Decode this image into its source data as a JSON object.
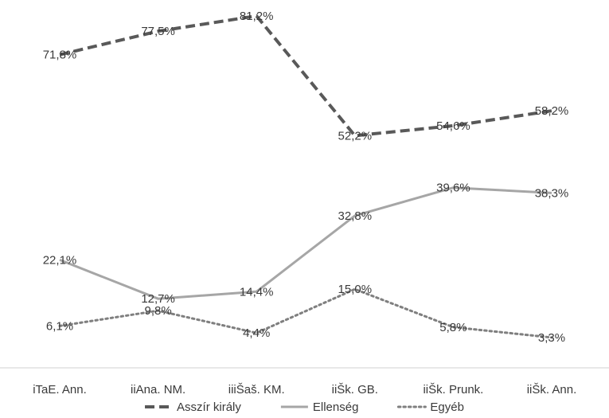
{
  "chart_data": {
    "type": "line",
    "categories": [
      "iTaE. Ann.",
      "iiAna. NM.",
      "iiiŠaš. KM.",
      "iiŠk. GB.",
      "iiŠk. Prunk.",
      "iiŠk. Ann."
    ],
    "ylim": [
      0,
      85
    ],
    "grid": false,
    "legend_position": "bottom",
    "series": [
      {
        "name": "Asszír király",
        "values": [
          71.8,
          77.5,
          81.2,
          52.2,
          54.6,
          58.2
        ],
        "labels": [
          "71,8%",
          "77,5%",
          "81,2%",
          "52,2%",
          "54,6%",
          "58,2%"
        ],
        "color": "#595959",
        "style": "dashed"
      },
      {
        "name": "Ellenség",
        "values": [
          22.1,
          12.7,
          14.4,
          32.8,
          39.6,
          38.3
        ],
        "labels": [
          "22,1%",
          "12,7%",
          "14,4%",
          "32,8%",
          "39,6%",
          "38,3%"
        ],
        "color": "#a6a6a6",
        "style": "solid"
      },
      {
        "name": "Egyéb",
        "values": [
          6.1,
          9.8,
          4.4,
          15.0,
          5.8,
          3.3
        ],
        "labels": [
          "6,1%",
          "9,8%",
          "4,4%",
          "15,0%",
          "5,8%",
          "3,3%"
        ],
        "color": "#7f7f7f",
        "style": "dotted"
      }
    ]
  }
}
